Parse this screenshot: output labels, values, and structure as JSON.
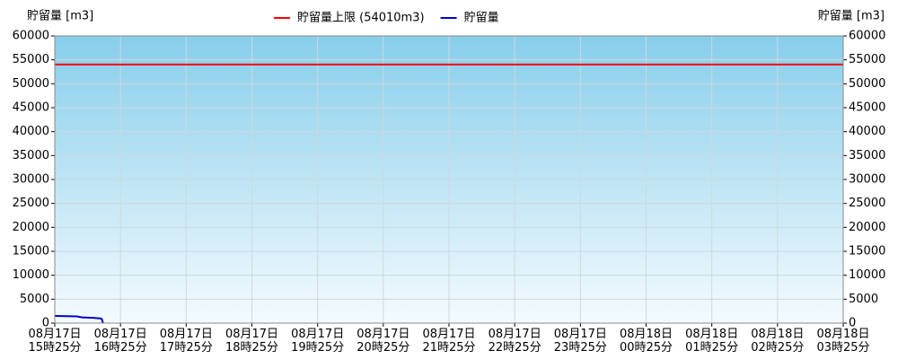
{
  "chart_data": {
    "type": "line",
    "y_title": "貯留量 [m3]",
    "y2_title": "貯留量 [m3]",
    "xlim": [
      "08-17 15:25",
      "08-18 03:25"
    ],
    "xticks": [
      {
        "value": "08-17 15:25",
        "label": "08月17日\n15時25分"
      },
      {
        "value": "08-17 16:25",
        "label": "08月17日\n16時25分"
      },
      {
        "value": "08-17 17:25",
        "label": "08月17日\n17時25分"
      },
      {
        "value": "08-17 18:25",
        "label": "08月17日\n18時25分"
      },
      {
        "value": "08-17 19:25",
        "label": "08月17日\n19時25分"
      },
      {
        "value": "08-17 20:25",
        "label": "08月17日\n20時25分"
      },
      {
        "value": "08-17 21:25",
        "label": "08月17日\n21時25分"
      },
      {
        "value": "08-17 22:25",
        "label": "08月17日\n22時25分"
      },
      {
        "value": "08-17 23:25",
        "label": "08月17日\n23時25分"
      },
      {
        "value": "08-18 00:25",
        "label": "08月18日\n00時25分"
      },
      {
        "value": "08-18 01:25",
        "label": "08月18日\n01時25分"
      },
      {
        "value": "08-18 02:25",
        "label": "08月18日\n02時25分"
      },
      {
        "value": "08-18 03:25",
        "label": "08月18日\n03時25分"
      }
    ],
    "ylim": [
      0,
      60000
    ],
    "yticks": [
      0,
      5000,
      10000,
      15000,
      20000,
      25000,
      30000,
      35000,
      40000,
      45000,
      50000,
      55000,
      60000
    ],
    "y2lim": [
      0,
      60000
    ],
    "y2ticks": [
      0,
      5000,
      10000,
      15000,
      20000,
      25000,
      30000,
      35000,
      40000,
      45000,
      50000,
      55000,
      60000
    ],
    "grid": true,
    "legend": "top",
    "series": [
      {
        "name": "貯留量上限 (54010m3)",
        "color": "#ff0000",
        "x": [
          "08-17 15:25",
          "08-18 03:25"
        ],
        "values": [
          54010,
          54010
        ]
      },
      {
        "name": "貯留量",
        "color": "#0000cc",
        "x": [
          "08-17 15:25",
          "08-17 15:35",
          "08-17 15:45",
          "08-17 15:50",
          "08-17 16:00",
          "08-17 16:07",
          "08-17 16:08",
          "08-17 16:09"
        ],
        "values": [
          1500,
          1450,
          1400,
          1200,
          1100,
          950,
          850,
          0
        ]
      }
    ]
  }
}
